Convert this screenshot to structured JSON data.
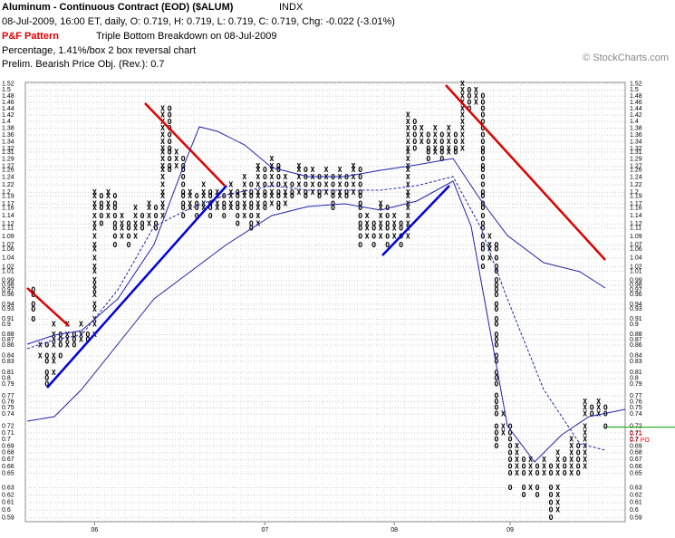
{
  "chart_data": {
    "type": "pnf",
    "title": "Aluminum - Continuous Contract (EOD) ($ALUM)",
    "exchange": "INDX",
    "quote": "08-Jul-2009, 16:00 ET, daily, O: 0.719, H: 0.719, L: 0.719, C: 0.719, Chg: -0.022 (-3.01%)",
    "pattern_label": "P&F Pattern",
    "pattern": "Triple Bottom Breakdown on 08-Jul-2009",
    "method": "Percentage, 1.41%/box 2 box reversal chart",
    "objective": "Prelim. Bearish Price Obj. (Rev.): 0.7",
    "copyright": "© StockCharts.com",
    "log_scale": true,
    "grid": true,
    "colors": {
      "X": "#000000",
      "O": "#000000",
      "last": "#00a000",
      "objective": "#ff0000"
    },
    "last_price": 0.719,
    "objective_labels": [
      "0.71",
      "0.7 PO"
    ],
    "ylim": [
      0.585,
      1.525
    ],
    "yticks": [
      1.52,
      1.5,
      1.48,
      1.46,
      1.44,
      1.42,
      1.4,
      1.38,
      1.36,
      1.34,
      1.32,
      1.31,
      1.29,
      1.27,
      1.26,
      1.24,
      1.22,
      1.2,
      1.19,
      1.17,
      1.16,
      1.14,
      1.12,
      1.11,
      1.09,
      1.07,
      1.06,
      1.04,
      1.02,
      1.01,
      0.99,
      0.98,
      0.97,
      0.96,
      0.94,
      0.93,
      0.91,
      0.9,
      0.88,
      0.87,
      0.86,
      0.84,
      0.83,
      0.81,
      0.8,
      0.79,
      0.77,
      0.76,
      0.75,
      0.74,
      0.72,
      0.71,
      0.7,
      0.69,
      0.68,
      0.67,
      0.66,
      0.65,
      0.63,
      0.62,
      0.61,
      0.6,
      0.59
    ],
    "date_labels": [
      {
        "label": "06",
        "column": 9
      },
      {
        "label": "07",
        "column": 34
      },
      {
        "label": "08",
        "column": 53
      },
      {
        "label": "09",
        "column": 70
      }
    ],
    "columns": [
      {
        "type": "O",
        "low": 0.91,
        "high": 0.97
      },
      {
        "type": "X",
        "low": 0.84,
        "high": 0.86
      },
      {
        "type": "O",
        "low": 0.79,
        "high": 0.86
      },
      {
        "type": "X",
        "low": 0.81,
        "high": 0.9
      },
      {
        "type": "O",
        "low": 0.84,
        "high": 0.89
      },
      {
        "type": "X",
        "low": 0.86,
        "high": 0.9
      },
      {
        "type": "O",
        "low": 0.86,
        "high": 0.89
      },
      {
        "type": "X",
        "low": 0.87,
        "high": 0.9
      },
      {
        "type": "O",
        "low": 0.87,
        "high": 0.89
      },
      {
        "type": "X",
        "low": 0.88,
        "high": 1.2
      },
      {
        "type": "O",
        "low": 1.12,
        "high": 1.19
      },
      {
        "type": "X",
        "low": 1.14,
        "high": 1.2
      },
      {
        "type": "O",
        "low": 1.07,
        "high": 1.19
      },
      {
        "type": "X",
        "low": 1.09,
        "high": 1.14
      },
      {
        "type": "O",
        "low": 1.07,
        "high": 1.12
      },
      {
        "type": "X",
        "low": 1.09,
        "high": 1.16
      },
      {
        "type": "O",
        "low": 1.11,
        "high": 1.14
      },
      {
        "type": "X",
        "low": 1.12,
        "high": 1.17
      },
      {
        "type": "O",
        "low": 1.11,
        "high": 1.16
      },
      {
        "type": "X",
        "low": 1.14,
        "high": 1.45
      },
      {
        "type": "O",
        "low": 1.26,
        "high": 1.44
      },
      {
        "type": "X",
        "low": 1.27,
        "high": 1.31
      },
      {
        "type": "O",
        "low": 1.14,
        "high": 1.29
      },
      {
        "type": "X",
        "low": 1.16,
        "high": 1.2
      },
      {
        "type": "O",
        "low": 1.14,
        "high": 1.19
      },
      {
        "type": "X",
        "low": 1.16,
        "high": 1.22
      },
      {
        "type": "O",
        "low": 1.14,
        "high": 1.2
      },
      {
        "type": "X",
        "low": 1.16,
        "high": 1.2
      },
      {
        "type": "O",
        "low": 1.14,
        "high": 1.19
      },
      {
        "type": "X",
        "low": 1.16,
        "high": 1.22
      },
      {
        "type": "O",
        "low": 1.12,
        "high": 1.2
      },
      {
        "type": "X",
        "low": 1.14,
        "high": 1.24
      },
      {
        "type": "O",
        "low": 1.11,
        "high": 1.22
      },
      {
        "type": "X",
        "low": 1.12,
        "high": 1.27
      },
      {
        "type": "O",
        "low": 1.16,
        "high": 1.26
      },
      {
        "type": "X",
        "low": 1.17,
        "high": 1.29
      },
      {
        "type": "O",
        "low": 1.16,
        "high": 1.27
      },
      {
        "type": "X",
        "low": 1.17,
        "high": 1.24
      },
      {
        "type": "O",
        "low": 1.19,
        "high": 1.22
      },
      {
        "type": "X",
        "low": 1.2,
        "high": 1.27
      },
      {
        "type": "O",
        "low": 1.19,
        "high": 1.26
      },
      {
        "type": "X",
        "low": 1.2,
        "high": 1.26
      },
      {
        "type": "O",
        "low": 1.19,
        "high": 1.24
      },
      {
        "type": "X",
        "low": 1.2,
        "high": 1.26
      },
      {
        "type": "O",
        "low": 1.16,
        "high": 1.24
      },
      {
        "type": "X",
        "low": 1.19,
        "high": 1.26
      },
      {
        "type": "O",
        "low": 1.19,
        "high": 1.24
      },
      {
        "type": "X",
        "low": 1.2,
        "high": 1.27
      },
      {
        "type": "O",
        "low": 1.07,
        "high": 1.26
      },
      {
        "type": "X",
        "low": 1.09,
        "high": 1.14
      },
      {
        "type": "O",
        "low": 1.07,
        "high": 1.12
      },
      {
        "type": "X",
        "low": 1.09,
        "high": 1.17
      },
      {
        "type": "O",
        "low": 1.07,
        "high": 1.16
      },
      {
        "type": "X",
        "low": 1.09,
        "high": 1.14
      },
      {
        "type": "O",
        "low": 1.07,
        "high": 1.12
      },
      {
        "type": "X",
        "low": 1.09,
        "high": 1.42
      },
      {
        "type": "O",
        "low": 1.32,
        "high": 1.4
      },
      {
        "type": "X",
        "low": 1.34,
        "high": 1.38
      },
      {
        "type": "O",
        "low": 1.29,
        "high": 1.36
      },
      {
        "type": "X",
        "low": 1.31,
        "high": 1.38
      },
      {
        "type": "O",
        "low": 1.29,
        "high": 1.36
      },
      {
        "type": "X",
        "low": 1.31,
        "high": 1.38
      },
      {
        "type": "O",
        "low": 1.31,
        "high": 1.36
      },
      {
        "type": "X",
        "low": 1.32,
        "high": 1.52
      },
      {
        "type": "O",
        "low": 1.44,
        "high": 1.5
      },
      {
        "type": "X",
        "low": 1.46,
        "high": 1.5
      },
      {
        "type": "O",
        "low": 1.02,
        "high": 1.48
      },
      {
        "type": "X",
        "low": 1.04,
        "high": 1.09
      },
      {
        "type": "O",
        "low": 0.69,
        "high": 1.07
      },
      {
        "type": "X",
        "low": 0.71,
        "high": 0.74
      },
      {
        "type": "O",
        "low": 0.63,
        "high": 0.72
      },
      {
        "type": "X",
        "low": 0.65,
        "high": 0.69
      },
      {
        "type": "O",
        "low": 0.62,
        "high": 0.67
      },
      {
        "type": "X",
        "low": 0.63,
        "high": 0.67
      },
      {
        "type": "O",
        "low": 0.62,
        "high": 0.66
      },
      {
        "type": "X",
        "low": 0.64,
        "high": 0.67
      },
      {
        "type": "O",
        "low": 0.59,
        "high": 0.66
      },
      {
        "type": "X",
        "low": 0.6,
        "high": 0.68
      },
      {
        "type": "O",
        "low": 0.64,
        "high": 0.67
      },
      {
        "type": "X",
        "low": 0.65,
        "high": 0.7
      },
      {
        "type": "O",
        "low": 0.65,
        "high": 0.69
      },
      {
        "type": "X",
        "low": 0.66,
        "high": 0.76
      },
      {
        "type": "O",
        "low": 0.73,
        "high": 0.75
      },
      {
        "type": "X",
        "low": 0.74,
        "high": 0.76
      },
      {
        "type": "O",
        "low": 0.72,
        "high": 0.75
      }
    ]
  }
}
